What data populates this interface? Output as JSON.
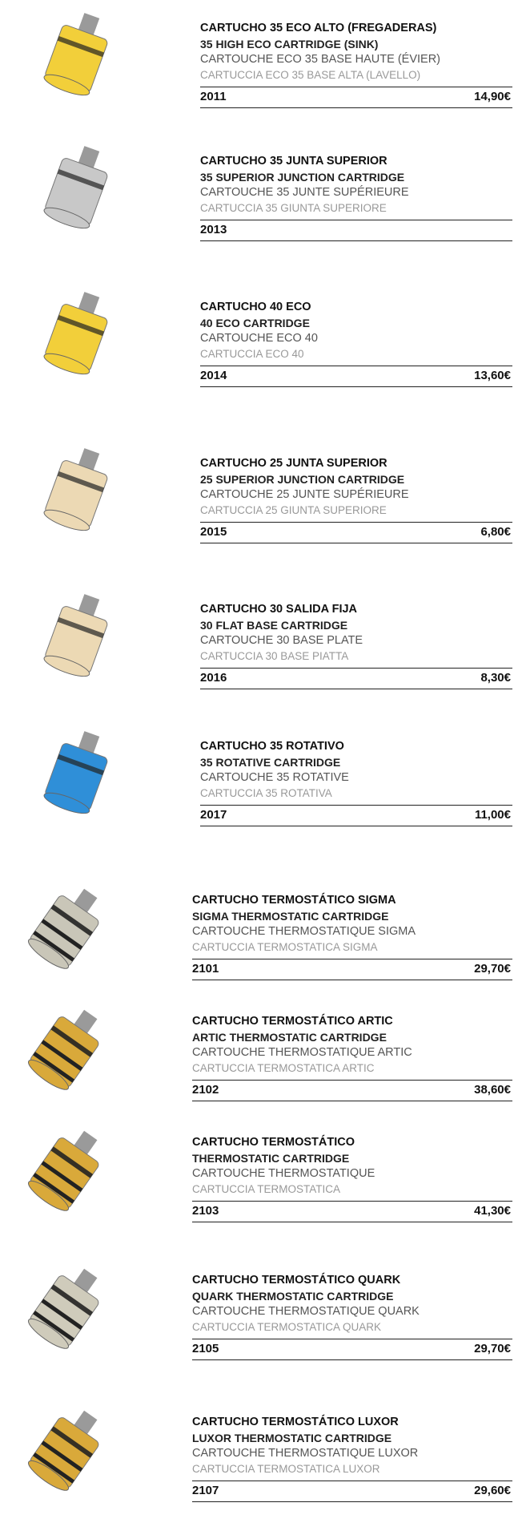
{
  "items": [
    {
      "lines": [
        "CARTUCHO 35 ECO ALTO (FREGADERAS)",
        "35 HIGH ECO CARTRIDGE (SINK)",
        "CARTOUCHE ECO 35 BASE HAUTE (ÉVIER)",
        "CARTUCCIA ECO 35 BASE ALTA (LAVELLO)"
      ],
      "code": "2011",
      "price": "14,90€"
    },
    {
      "lines": [
        "CARTUCHO 35 JUNTA SUPERIOR",
        "35 SUPERIOR JUNCTION CARTRIDGE",
        "CARTOUCHE 35 JUNTE SUPÉRIEURE",
        "CARTUCCIA 35 GIUNTA SUPERIORE"
      ],
      "code": "2013"
    },
    {
      "lines": [
        "CARTUCHO 40 ECO",
        "40 ECO CARTRIDGE",
        "CARTOUCHE ECO 40",
        "CARTUCCIA ECO 40"
      ],
      "code": "2014",
      "price": "13,60€"
    },
    {
      "lines": [
        "CARTUCHO 25 JUNTA SUPERIOR",
        "25 SUPERIOR JUNCTION CARTRIDGE",
        "CARTOUCHE 25 JUNTE SUPÉRIEURE",
        "CARTUCCIA 25 GIUNTA SUPERIORE"
      ],
      "code": "2015",
      "price": "6,80€"
    },
    {
      "lines": [
        "CARTUCHO 30 SALIDA FIJA",
        "30 FLAT BASE CARTRIDGE",
        "CARTOUCHE 30 BASE PLATE",
        "CARTUCCIA 30 BASE PIATTA"
      ],
      "code": "2016",
      "price": "8,30€"
    },
    {
      "lines": [
        "CARTUCHO 35 ROTATIVO",
        "35 ROTATIVE CARTRIDGE",
        "CARTOUCHE 35 ROTATIVE",
        "CARTUCCIA 35 ROTATIVA"
      ],
      "code": "2017",
      "price": "11,00€"
    },
    {
      "lines": [
        "CARTUCHO TERMOSTÁTICO SIGMA",
        "SIGMA THERMOSTATIC CARTRIDGE",
        "CARTOUCHE THERMOSTATIQUE SIGMA",
        "CARTUCCIA TERMOSTATICA SIGMA"
      ],
      "code": "2101",
      "price": "29,70€"
    },
    {
      "lines": [
        "CARTUCHO TERMOSTÁTICO ARTIC",
        "ARTIC THERMOSTATIC CARTRIDGE",
        "CARTOUCHE THERMOSTATIQUE ARTIC",
        "CARTUCCIA TERMOSTATICA ARTIC"
      ],
      "code": "2102",
      "price": "38,60€"
    },
    {
      "lines": [
        "CARTUCHO TERMOSTÁTICO",
        "THERMOSTATIC CARTRIDGE",
        "CARTOUCHE THERMOSTATIQUE",
        "CARTUCCIA TERMOSTATICA"
      ],
      "code": "2103",
      "price": "41,30€"
    },
    {
      "lines": [
        "CARTUCHO TERMOSTÁTICO QUARK",
        "QUARK THERMOSTATIC CARTRIDGE",
        "CARTOUCHE THERMOSTATIQUE QUARK",
        "CARTUCCIA TERMOSTATICA QUARK"
      ],
      "code": "2105",
      "price": "29,70€"
    },
    {
      "lines": [
        "CARTUCHO TERMOSTÁTICO LUXOR",
        "LUXOR THERMOSTATIC CARTRIDGE",
        "CARTOUCHE THERMOSTATIQUE LUXOR",
        "CARTUCCIA TERMOSTATICA LUXOR"
      ],
      "code": "2107",
      "price": "29,60€"
    }
  ]
}
